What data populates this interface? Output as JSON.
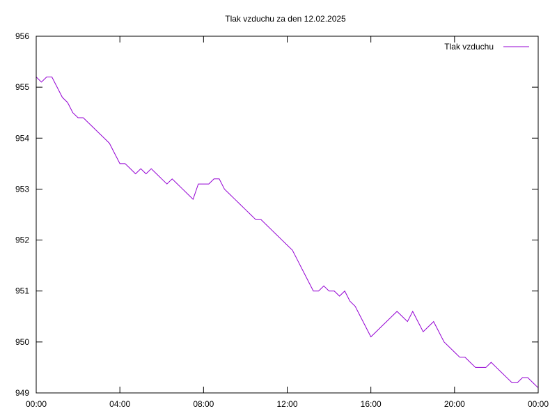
{
  "chart_data": {
    "type": "line",
    "title": "Tlak vzduchu za den 12.02.2025",
    "xlabel": "",
    "ylabel": "",
    "xlim": [
      0,
      24
    ],
    "ylim": [
      949,
      956
    ],
    "x_ticks": [
      {
        "value": 0,
        "label": "00:00"
      },
      {
        "value": 4,
        "label": "04:00"
      },
      {
        "value": 8,
        "label": "08:00"
      },
      {
        "value": 12,
        "label": "12:00"
      },
      {
        "value": 16,
        "label": "16:00"
      },
      {
        "value": 20,
        "label": "20:00"
      },
      {
        "value": 24,
        "label": "00:00"
      }
    ],
    "y_ticks": [
      {
        "value": 949,
        "label": "949"
      },
      {
        "value": 950,
        "label": "950"
      },
      {
        "value": 951,
        "label": "951"
      },
      {
        "value": 952,
        "label": "952"
      },
      {
        "value": 953,
        "label": "953"
      },
      {
        "value": 954,
        "label": "954"
      },
      {
        "value": 955,
        "label": "955"
      },
      {
        "value": 956,
        "label": "956"
      }
    ],
    "grid": false,
    "legend_position": "top-right",
    "series": [
      {
        "name": "Tlak vzduchu",
        "color": "#9400d3",
        "x": [
          0,
          0.25,
          0.5,
          0.75,
          1.0,
          1.25,
          1.5,
          1.75,
          2.0,
          2.25,
          2.5,
          2.75,
          3.0,
          3.25,
          3.5,
          3.75,
          4.0,
          4.25,
          4.5,
          4.75,
          5.0,
          5.25,
          5.5,
          5.75,
          6.0,
          6.25,
          6.5,
          6.75,
          7.0,
          7.25,
          7.5,
          7.75,
          8.0,
          8.25,
          8.5,
          8.75,
          9.0,
          9.25,
          9.5,
          9.75,
          10.0,
          10.25,
          10.5,
          10.75,
          11.0,
          11.25,
          11.5,
          11.75,
          12.0,
          12.25,
          12.5,
          12.75,
          13.0,
          13.25,
          13.5,
          13.75,
          14.0,
          14.25,
          14.5,
          14.75,
          15.0,
          15.25,
          15.5,
          15.75,
          16.0,
          16.25,
          16.5,
          16.75,
          17.0,
          17.25,
          17.5,
          17.75,
          18.0,
          18.25,
          18.5,
          18.75,
          19.0,
          19.25,
          19.5,
          19.75,
          20.0,
          20.25,
          20.5,
          20.75,
          21.0,
          21.25,
          21.5,
          21.75,
          22.0,
          22.25,
          22.5,
          22.75,
          23.0,
          23.25,
          23.5,
          23.75,
          24.0
        ],
        "y": [
          955.2,
          955.1,
          955.2,
          955.2,
          955.0,
          954.8,
          954.7,
          954.5,
          954.4,
          954.4,
          954.3,
          954.2,
          954.1,
          954.0,
          953.9,
          953.7,
          953.5,
          953.5,
          953.4,
          953.3,
          953.4,
          953.3,
          953.4,
          953.3,
          953.2,
          953.1,
          953.2,
          953.1,
          953.0,
          952.9,
          952.8,
          953.1,
          953.1,
          953.1,
          953.2,
          953.2,
          953.0,
          952.9,
          952.8,
          952.7,
          952.6,
          952.5,
          952.4,
          952.4,
          952.3,
          952.2,
          952.1,
          952.0,
          951.9,
          951.8,
          951.6,
          951.4,
          951.2,
          951.0,
          951.0,
          951.1,
          951.0,
          951.0,
          950.9,
          951.0,
          950.8,
          950.7,
          950.5,
          950.3,
          950.1,
          950.2,
          950.3,
          950.4,
          950.5,
          950.6,
          950.5,
          950.4,
          950.6,
          950.4,
          950.2,
          950.3,
          950.4,
          950.2,
          950.0,
          949.9,
          949.8,
          949.7,
          949.7,
          949.6,
          949.5,
          949.5,
          949.5,
          949.6,
          949.5,
          949.4,
          949.3,
          949.2,
          949.2,
          949.3,
          949.3,
          949.2,
          949.1
        ]
      }
    ]
  }
}
